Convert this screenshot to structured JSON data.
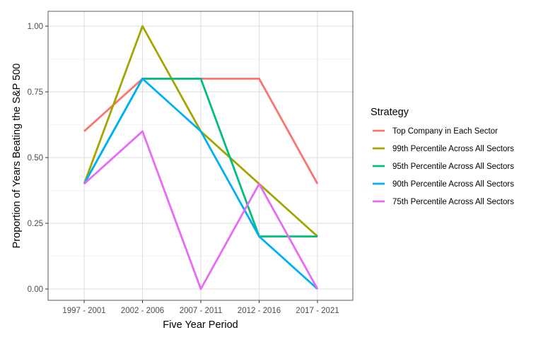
{
  "chart_data": {
    "type": "line",
    "categories": [
      "1997 - 2001",
      "2002 - 2006",
      "2007 - 2011",
      "2012 - 2016",
      "2017 - 2021"
    ],
    "xlabel": "Five Year Period",
    "ylabel": "Proportion of Years Beating the S&P 500",
    "ylim": [
      0,
      1
    ],
    "yticks": [
      "0.00",
      "0.25",
      "0.50",
      "0.75",
      "1.00"
    ],
    "yticks_values": [
      0,
      0.25,
      0.5,
      0.75,
      1.0
    ],
    "grid": true,
    "legend_position": "right",
    "legend_title": "Strategy",
    "series": [
      {
        "name": "Top Company in Each Sector",
        "color": "#F8766D",
        "values": [
          0.6,
          0.8,
          0.8,
          0.8,
          0.4
        ]
      },
      {
        "name": "99th Percentile Across All Sectors",
        "color": "#A3A500",
        "values": [
          0.4,
          1.0,
          0.6,
          0.4,
          0.2
        ]
      },
      {
        "name": "95th Percentile Across All Sectors",
        "color": "#00BF7D",
        "values": [
          0.4,
          0.8,
          0.8,
          0.2,
          0.2
        ]
      },
      {
        "name": "90th Percentile Across All Sectors",
        "color": "#00B0F6",
        "values": [
          0.4,
          0.8,
          0.6,
          0.2,
          0.0
        ]
      },
      {
        "name": "75th Percentile Across All Sectors",
        "color": "#E76BF3",
        "values": [
          0.4,
          0.6,
          0.0,
          0.4,
          0.0
        ]
      }
    ]
  }
}
